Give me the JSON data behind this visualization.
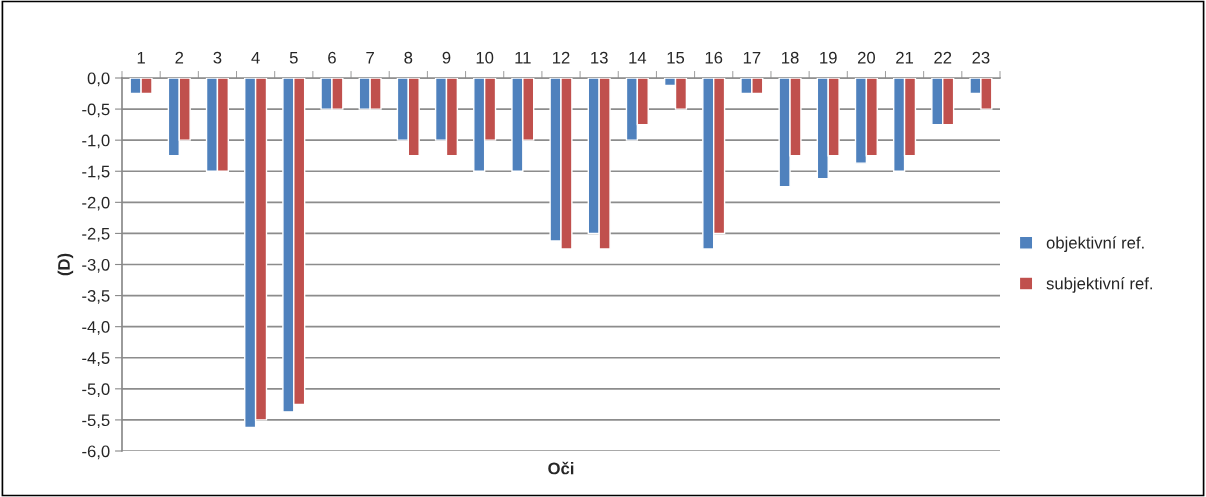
{
  "chart_data": {
    "type": "bar",
    "xlabel": "Oči",
    "ylabel": "(D)",
    "categories": [
      "1",
      "2",
      "3",
      "4",
      "5",
      "6",
      "7",
      "8",
      "9",
      "10",
      "11",
      "12",
      "13",
      "14",
      "15",
      "16",
      "17",
      "18",
      "19",
      "20",
      "21",
      "22",
      "23"
    ],
    "series": [
      {
        "name": "objektivní ref.",
        "color": "#4f81bd",
        "values": [
          -0.25,
          -1.25,
          -1.5,
          -5.62,
          -5.37,
          -0.5,
          -0.5,
          -1.0,
          -1.0,
          -1.5,
          -1.5,
          -2.62,
          -2.5,
          -1.0,
          -0.12,
          -2.75,
          -0.25,
          -1.75,
          -1.62,
          -1.37,
          -1.5,
          -0.75,
          -0.25
        ]
      },
      {
        "name": "subjektivní ref.",
        "color": "#c0504d",
        "values": [
          -0.25,
          -1.0,
          -1.5,
          -5.5,
          -5.25,
          -0.5,
          -0.5,
          -1.25,
          -1.25,
          -1.0,
          -1.0,
          -2.75,
          -2.75,
          -0.75,
          -0.5,
          -2.5,
          -0.25,
          -1.25,
          -1.25,
          -1.25,
          -1.25,
          -0.75,
          -0.5
        ]
      }
    ],
    "ylim": [
      -6,
      0
    ],
    "yticks": [
      {
        "value": 0,
        "label": "0,0"
      },
      {
        "value": -0.5,
        "label": "-0,5"
      },
      {
        "value": -1,
        "label": "-1,0"
      },
      {
        "value": -1.5,
        "label": "-1,5"
      },
      {
        "value": -2,
        "label": "-2,0"
      },
      {
        "value": -2.5,
        "label": "-2,5"
      },
      {
        "value": -3,
        "label": "-3,0"
      },
      {
        "value": -3.5,
        "label": "-3,5"
      },
      {
        "value": -4,
        "label": "-4,0"
      },
      {
        "value": -4.5,
        "label": "-4,5"
      },
      {
        "value": -5,
        "label": "-5,0"
      },
      {
        "value": -5.5,
        "label": "-5,5"
      },
      {
        "value": -6,
        "label": "-6,0"
      }
    ],
    "grid": "y",
    "legend": "right"
  }
}
